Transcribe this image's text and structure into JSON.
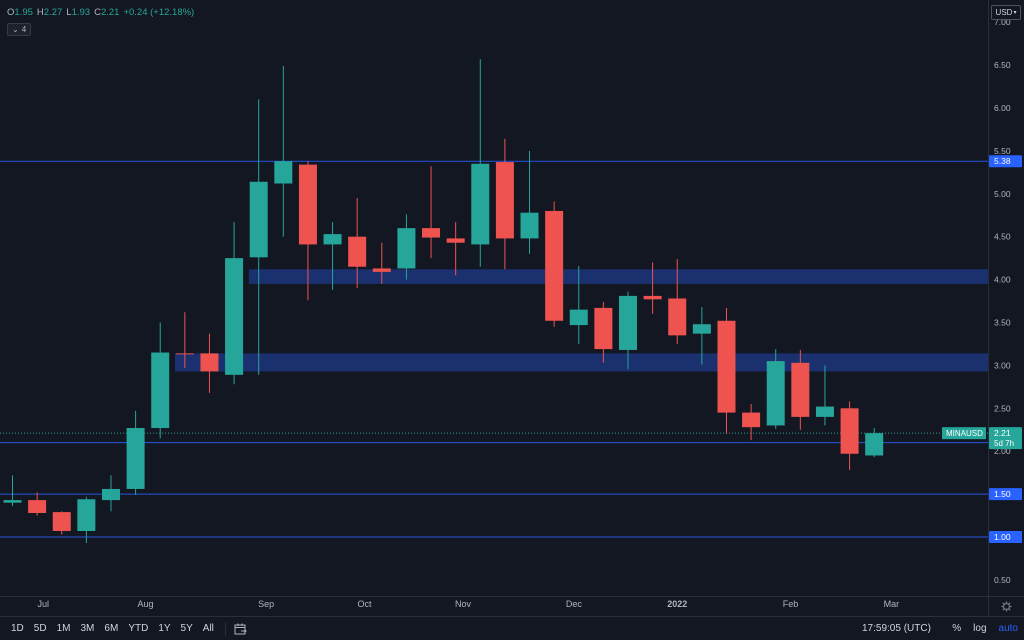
{
  "header": {
    "ohlc": {
      "o_label": "O",
      "o_value": "1.95",
      "h_label": "H",
      "h_value": "2.27",
      "l_label": "L",
      "l_value": "1.93",
      "c_label": "C",
      "c_value": "2.21",
      "change": "+0.24 (+12.18%)"
    },
    "indicators_count": "4",
    "currency": "USD"
  },
  "colors": {
    "up": "#26a69a",
    "down": "#ef5350",
    "background": "#131722",
    "zone": "#1e3a8a",
    "level_line": "#2962ff",
    "level_label_bg": "#2962ff",
    "last_price_bg": "#26a69a"
  },
  "chart_data": {
    "type": "candlestick",
    "symbol_label": "MINAUSD",
    "last_price": "2.21",
    "countdown": "5d 7h",
    "y_ticks": [
      "7.00",
      "6.50",
      "6.00",
      "5.50",
      "5.00",
      "4.50",
      "4.00",
      "3.50",
      "3.00",
      "2.50",
      "2.00",
      "1.50",
      "1.00",
      "0.50"
    ],
    "y_tick_values": [
      7.0,
      6.5,
      6.0,
      5.5,
      5.0,
      4.5,
      4.0,
      3.5,
      3.0,
      2.5,
      2.0,
      1.5,
      1.0,
      0.5
    ],
    "x_labels": [
      "Jul",
      "Aug",
      "Sep",
      "Oct",
      "Nov",
      "Dec",
      "2022",
      "Feb",
      "Mar"
    ],
    "x_label_index": [
      1.25,
      5.4,
      10.3,
      14.3,
      18.3,
      22.8,
      27.0,
      31.6,
      35.7
    ],
    "horizontal_levels": [
      {
        "value": 5.38,
        "label": "5.38"
      },
      {
        "value": 2.1,
        "label": "2.10"
      },
      {
        "value": 1.5,
        "label": "1.50"
      },
      {
        "value": 1.0,
        "label": "1.00"
      }
    ],
    "zones": [
      {
        "low": 3.95,
        "high": 4.12,
        "from_index": 9.6
      },
      {
        "low": 2.93,
        "high": 3.14,
        "from_index": 6.6
      }
    ],
    "candles": [
      {
        "o": 1.4,
        "h": 1.72,
        "l": 1.36,
        "c": 1.43
      },
      {
        "o": 1.43,
        "h": 1.52,
        "l": 1.25,
        "c": 1.28
      },
      {
        "o": 1.29,
        "h": 1.3,
        "l": 1.03,
        "c": 1.07
      },
      {
        "o": 1.07,
        "h": 1.47,
        "l": 0.93,
        "c": 1.44
      },
      {
        "o": 1.43,
        "h": 1.72,
        "l": 1.3,
        "c": 1.56
      },
      {
        "o": 1.56,
        "h": 2.47,
        "l": 1.49,
        "c": 2.27
      },
      {
        "o": 2.27,
        "h": 3.5,
        "l": 2.15,
        "c": 3.15
      },
      {
        "o": 3.14,
        "h": 3.62,
        "l": 2.97,
        "c": 3.13
      },
      {
        "o": 3.14,
        "h": 3.37,
        "l": 2.68,
        "c": 2.93
      },
      {
        "o": 2.89,
        "h": 4.67,
        "l": 2.78,
        "c": 4.25
      },
      {
        "o": 4.26,
        "h": 6.1,
        "l": 2.89,
        "c": 5.14
      },
      {
        "o": 5.12,
        "h": 6.49,
        "l": 4.5,
        "c": 5.38
      },
      {
        "o": 5.34,
        "h": 5.38,
        "l": 3.76,
        "c": 4.41
      },
      {
        "o": 4.41,
        "h": 4.67,
        "l": 3.88,
        "c": 4.53
      },
      {
        "o": 4.5,
        "h": 4.95,
        "l": 3.9,
        "c": 4.15
      },
      {
        "o": 4.13,
        "h": 4.43,
        "l": 3.95,
        "c": 4.09
      },
      {
        "o": 4.13,
        "h": 4.76,
        "l": 4.0,
        "c": 4.6
      },
      {
        "o": 4.6,
        "h": 5.32,
        "l": 4.25,
        "c": 4.49
      },
      {
        "o": 4.48,
        "h": 4.67,
        "l": 4.05,
        "c": 4.43
      },
      {
        "o": 4.41,
        "h": 6.57,
        "l": 4.15,
        "c": 5.35
      },
      {
        "o": 5.37,
        "h": 5.64,
        "l": 4.12,
        "c": 4.48
      },
      {
        "o": 4.48,
        "h": 5.5,
        "l": 4.3,
        "c": 4.78
      },
      {
        "o": 4.8,
        "h": 4.91,
        "l": 3.45,
        "c": 3.52
      },
      {
        "o": 3.47,
        "h": 4.16,
        "l": 3.25,
        "c": 3.65
      },
      {
        "o": 3.67,
        "h": 3.74,
        "l": 3.03,
        "c": 3.19
      },
      {
        "o": 3.18,
        "h": 3.86,
        "l": 2.96,
        "c": 3.81
      },
      {
        "o": 3.81,
        "h": 4.2,
        "l": 3.6,
        "c": 3.77
      },
      {
        "o": 3.78,
        "h": 4.24,
        "l": 3.25,
        "c": 3.35
      },
      {
        "o": 3.37,
        "h": 3.68,
        "l": 3.01,
        "c": 3.48
      },
      {
        "o": 3.52,
        "h": 3.67,
        "l": 2.2,
        "c": 2.45
      },
      {
        "o": 2.45,
        "h": 2.55,
        "l": 2.13,
        "c": 2.28
      },
      {
        "o": 2.3,
        "h": 3.19,
        "l": 2.26,
        "c": 3.05
      },
      {
        "o": 3.03,
        "h": 3.18,
        "l": 2.25,
        "c": 2.4
      },
      {
        "o": 2.4,
        "h": 3.0,
        "l": 2.3,
        "c": 2.52
      },
      {
        "o": 2.5,
        "h": 2.58,
        "l": 1.78,
        "c": 1.97
      },
      {
        "o": 1.95,
        "h": 2.27,
        "l": 1.93,
        "c": 2.21
      }
    ]
  },
  "bottom_bar": {
    "timeframes": [
      "1D",
      "5D",
      "1M",
      "3M",
      "6M",
      "YTD",
      "1Y",
      "5Y",
      "All"
    ],
    "clock": "17:59:05 (UTC)",
    "percent": "%",
    "log": "log",
    "auto": "auto",
    "range_icon": "date-range-icon",
    "settings_icon": "gear-icon"
  }
}
